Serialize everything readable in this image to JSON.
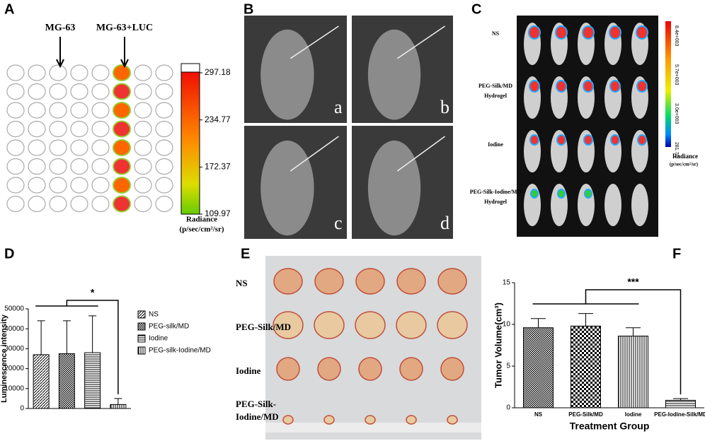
{
  "panel_labels": [
    "A",
    "B",
    "C",
    "D",
    "E",
    "F"
  ],
  "panel_a": {
    "arrow_labels": [
      "MG-63",
      "MG-63+LUC"
    ],
    "colorbar_ticks": [
      297.18,
      234.77,
      172.37,
      109.97
    ],
    "colorbar_title": "Radiance",
    "colorbar_unit": "(p/sec/cm²/sr)"
  },
  "panel_b": {
    "image_labels": [
      "a",
      "b",
      "c",
      "d"
    ]
  },
  "panel_c": {
    "row_labels": [
      [
        "NS"
      ],
      [
        "PEG-Silk/MD",
        "Hydrogel"
      ],
      [
        "Iodine"
      ],
      [
        "PEG-Silk-Iodine/MD",
        "Hydrogel"
      ]
    ],
    "colorbar_ticks": [
      "8.4e+003",
      "5.7e+003",
      "3.0e+003",
      "281.70"
    ],
    "colorbar_title": "Radiance",
    "colorbar_unit": "(p/sec/cm²/sr)"
  },
  "panel_e": {
    "row_labels": [
      [
        "NS"
      ],
      [
        "PEG-Silk/MD"
      ],
      [
        "Iodine"
      ],
      [
        "PEG-Silk-",
        "Iodine/MD"
      ]
    ]
  },
  "chart_data": [
    {
      "type": "bar",
      "ylabel": "Luminescence intensity",
      "categories": [
        "NS",
        "PEG-silk/MD",
        "Iodine",
        "PEG-silk-Iodine/MD"
      ],
      "values": [
        27000,
        27500,
        28000,
        2000
      ],
      "errors": [
        17000,
        16500,
        18500,
        3000
      ],
      "patterns": [
        "diagonal",
        "checker",
        "horizontal",
        "vertical"
      ],
      "color": "#000000",
      "ylim": [
        0,
        50000
      ],
      "yticks": [
        0,
        10000,
        20000,
        30000,
        40000,
        50000
      ],
      "legend": "right",
      "annotation": "*"
    },
    {
      "type": "bar",
      "ylabel": "Tumor Volume(cm³)",
      "xlabel": "Treatment Group",
      "categories": [
        "NS",
        "PEG-Silk/MD",
        "Iodine",
        "PEG-Iodine-Silk/MD"
      ],
      "values": [
        9.6,
        9.8,
        8.6,
        0.9
      ],
      "errors": [
        1.1,
        1.5,
        1.0,
        0.2
      ],
      "patterns": [
        "checker",
        "checker-large",
        "vertical",
        "horizontal"
      ],
      "color": "#000000",
      "ylim": [
        0,
        15
      ],
      "yticks": [
        0,
        5,
        10,
        15
      ],
      "legend": "none",
      "annotation": "***"
    }
  ]
}
